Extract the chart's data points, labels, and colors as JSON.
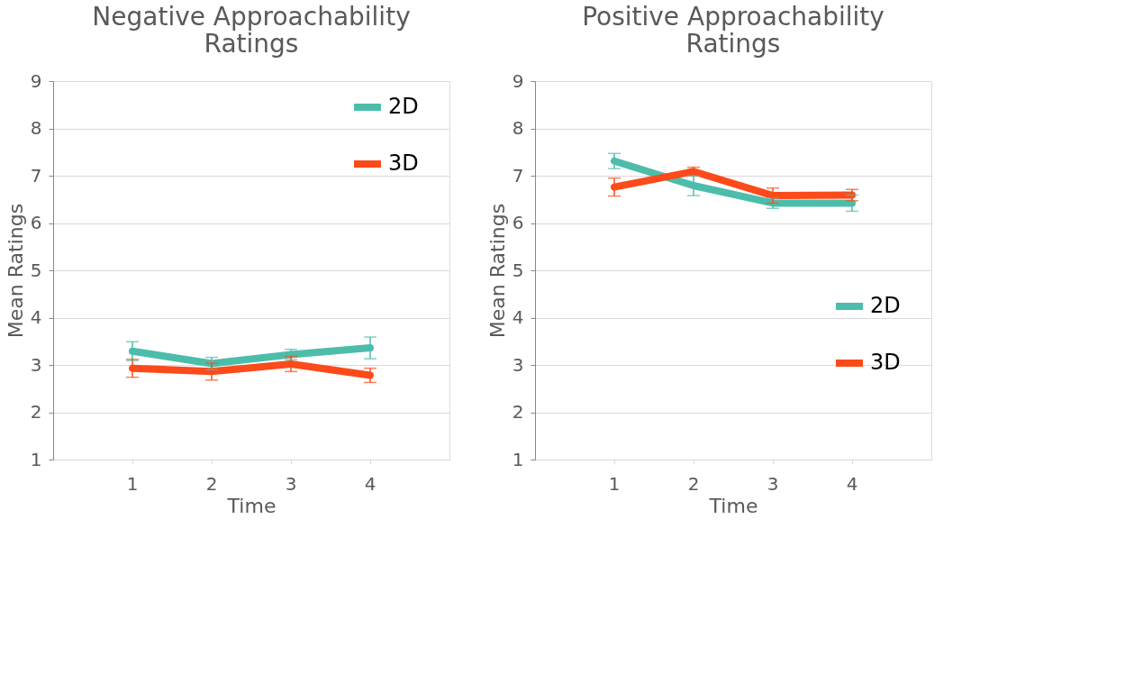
{
  "chart_data": [
    {
      "type": "line",
      "title": "Negative Approachability Ratings",
      "xlabel": "Time",
      "ylabel": "Mean Ratings",
      "categories": [
        "1",
        "2",
        "3",
        "4"
      ],
      "ylim": [
        1,
        9
      ],
      "yticks": [
        1,
        2,
        3,
        4,
        5,
        6,
        7,
        8,
        9
      ],
      "grid": "y",
      "legend": "top right",
      "marker": "none",
      "line_style": "solid",
      "series": [
        {
          "name": "2D",
          "color": "#4cbdab",
          "values": [
            3.29,
            3.03,
            3.22,
            3.36
          ],
          "errors": [
            0.2,
            0.13,
            0.11,
            0.23
          ]
        },
        {
          "name": "3D",
          "color": "#fc4a1a",
          "values": [
            2.93,
            2.86,
            3.02,
            2.78
          ],
          "errors": [
            0.19,
            0.18,
            0.16,
            0.15
          ]
        }
      ]
    },
    {
      "type": "line",
      "title": "Positive Approachability Ratings",
      "xlabel": "Time",
      "ylabel": "Mean Ratings",
      "categories": [
        "1",
        "2",
        "3",
        "4"
      ],
      "ylim": [
        1,
        9
      ],
      "yticks": [
        1,
        2,
        3,
        4,
        5,
        6,
        7,
        8,
        9
      ],
      "grid": "y",
      "legend": "right",
      "marker": "none",
      "line_style": "solid",
      "series": [
        {
          "name": "2D",
          "color": "#4cbdab",
          "values": [
            7.31,
            6.79,
            6.42,
            6.42
          ],
          "errors": [
            0.16,
            0.21,
            0.11,
            0.17
          ]
        },
        {
          "name": "3D",
          "color": "#fc4a1a",
          "values": [
            6.76,
            7.09,
            6.58,
            6.59
          ],
          "errors": [
            0.19,
            0.09,
            0.16,
            0.12
          ]
        }
      ]
    }
  ]
}
